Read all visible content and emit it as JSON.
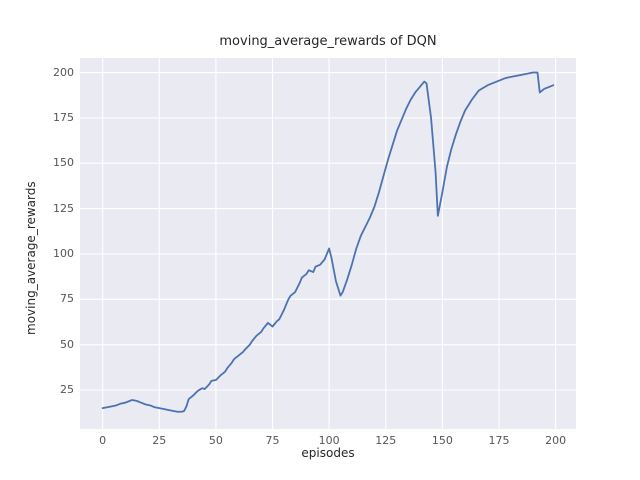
{
  "chart_data": {
    "type": "line",
    "title": "moving_average_rewards of DQN",
    "xlabel": "episodes",
    "ylabel": "moving_average_rewards",
    "xlim": [
      -10,
      209
    ],
    "ylim": [
      3.5,
      208
    ],
    "xticks": [
      0,
      25,
      50,
      75,
      100,
      125,
      150,
      175,
      200
    ],
    "yticks": [
      25,
      50,
      75,
      100,
      125,
      150,
      175,
      200
    ],
    "grid": true,
    "legend": "none",
    "series": [
      {
        "name": "moving_average_rewards",
        "x": [
          0,
          2,
          4,
          6,
          8,
          10,
          12,
          13,
          15,
          17,
          19,
          21,
          23,
          25,
          27,
          29,
          31,
          33,
          35,
          36,
          37,
          38,
          40,
          42,
          44,
          45,
          47,
          48,
          50,
          52,
          54,
          55,
          57,
          58,
          60,
          62,
          63,
          65,
          66,
          68,
          70,
          71,
          73,
          74,
          75,
          77,
          78,
          80,
          82,
          83,
          85,
          87,
          88,
          90,
          91,
          93,
          94,
          96,
          98,
          100,
          101,
          103,
          105,
          106,
          108,
          110,
          112,
          114,
          116,
          118,
          120,
          122,
          124,
          126,
          128,
          130,
          132,
          134,
          136,
          138,
          140,
          142,
          143,
          145,
          147,
          148,
          150,
          152,
          154,
          156,
          158,
          160,
          163,
          166,
          170,
          174,
          178,
          182,
          186,
          190,
          192,
          193,
          195,
          197,
          199
        ],
        "y": [
          15,
          15.5,
          16,
          16.5,
          17.5,
          18,
          19,
          19.5,
          19,
          18,
          17,
          16.5,
          15.5,
          15,
          14.5,
          14,
          13.5,
          13,
          13,
          13.5,
          16,
          20,
          22,
          24.5,
          26,
          25.5,
          28,
          30,
          30.5,
          33,
          35,
          37,
          40,
          42,
          44,
          46,
          47.5,
          50,
          52,
          55,
          57,
          59,
          62,
          61,
          60,
          63,
          64,
          69,
          75,
          77,
          79,
          84,
          87,
          89,
          91,
          90,
          93,
          94,
          97,
          103,
          98,
          85,
          77,
          79,
          86,
          94,
          103,
          110,
          115,
          120,
          126,
          134,
          143,
          152,
          160,
          168,
          174,
          180,
          185,
          189,
          192,
          195,
          194,
          175,
          145,
          121,
          134,
          148,
          158,
          166,
          173,
          179,
          185,
          190,
          193,
          195,
          197,
          198,
          199,
          200,
          200,
          189,
          191,
          192,
          193
        ]
      }
    ],
    "colors": {
      "plot_background": "#eaeaf2",
      "grid_line": "#ffffff",
      "series_line": "#4c72b0",
      "title_text": "#262626",
      "tick_text": "#555555"
    }
  }
}
